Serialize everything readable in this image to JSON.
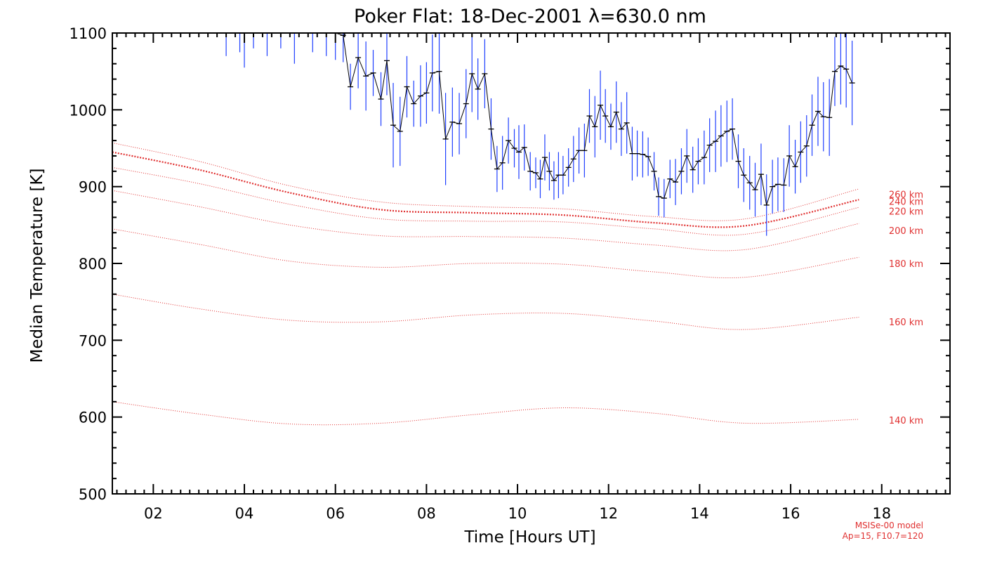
{
  "chart_data": {
    "type": "line",
    "title": "Poker Flat: 18-Dec-2001 λ=630.0 nm",
    "xlabel": "Time [Hours UT]",
    "ylabel": "Median Temperature [K]",
    "xlim": [
      1.1,
      19.5
    ],
    "ylim": [
      500,
      1100
    ],
    "x_ticks": [
      2,
      4,
      6,
      8,
      10,
      12,
      14,
      16,
      18
    ],
    "x_tick_labels": [
      "02",
      "04",
      "06",
      "08",
      "10",
      "12",
      "14",
      "16",
      "18"
    ],
    "y_ticks": [
      500,
      600,
      700,
      800,
      900,
      1000,
      1100
    ],
    "y_tick_labels": [
      "500",
      "600",
      "700",
      "800",
      "900",
      "1000",
      "1100"
    ],
    "grid": false,
    "colors": {
      "measurement": "#000000",
      "error_bar": "#1f3fff",
      "model": "#e03030"
    },
    "measurement_series": {
      "name": "",
      "points": [
        [
          3.6,
          1100,
          30
        ],
        [
          3.9,
          1100,
          25
        ],
        [
          4.0,
          1100,
          45
        ],
        [
          4.2,
          1100,
          20
        ],
        [
          4.5,
          1100,
          30
        ],
        [
          4.8,
          1100,
          20
        ],
        [
          5.1,
          1100,
          40
        ],
        [
          5.5,
          1100,
          25
        ],
        [
          5.8,
          1100,
          30
        ],
        [
          6.0,
          1100,
          35
        ],
        [
          6.17,
          1097,
          35
        ],
        [
          6.33,
          1030,
          30
        ],
        [
          6.5,
          1068,
          40
        ],
        [
          6.67,
          1044,
          45
        ],
        [
          6.83,
          1048,
          30
        ],
        [
          7.0,
          1014,
          35
        ],
        [
          7.13,
          1064,
          45
        ],
        [
          7.27,
          980,
          55
        ],
        [
          7.42,
          972,
          45
        ],
        [
          7.57,
          1030,
          40
        ],
        [
          7.72,
          1008,
          30
        ],
        [
          7.87,
          1018,
          40
        ],
        [
          8.0,
          1022,
          40
        ],
        [
          8.13,
          1048,
          50
        ],
        [
          8.28,
          1050,
          55
        ],
        [
          8.42,
          962,
          60
        ],
        [
          8.57,
          984,
          45
        ],
        [
          8.72,
          982,
          40
        ],
        [
          8.87,
          1008,
          45
        ],
        [
          9.0,
          1047,
          50
        ],
        [
          9.13,
          1027,
          40
        ],
        [
          9.28,
          1047,
          45
        ],
        [
          9.42,
          975,
          40
        ],
        [
          9.55,
          923,
          30
        ],
        [
          9.67,
          931,
          35
        ],
        [
          9.8,
          960,
          30
        ],
        [
          9.93,
          950,
          25
        ],
        [
          10.03,
          945,
          35
        ],
        [
          10.15,
          951,
          30
        ],
        [
          10.28,
          920,
          25
        ],
        [
          10.4,
          918,
          20
        ],
        [
          10.5,
          910,
          25
        ],
        [
          10.6,
          938,
          30
        ],
        [
          10.7,
          920,
          25
        ],
        [
          10.8,
          908,
          25
        ],
        [
          10.9,
          915,
          30
        ],
        [
          11.0,
          915,
          25
        ],
        [
          11.12,
          925,
          25
        ],
        [
          11.23,
          936,
          30
        ],
        [
          11.35,
          947,
          30
        ],
        [
          11.47,
          947,
          35
        ],
        [
          11.58,
          992,
          35
        ],
        [
          11.7,
          978,
          40
        ],
        [
          11.82,
          1006,
          45
        ],
        [
          11.93,
          992,
          35
        ],
        [
          12.05,
          978,
          30
        ],
        [
          12.17,
          997,
          40
        ],
        [
          12.28,
          975,
          35
        ],
        [
          12.4,
          983,
          40
        ],
        [
          12.52,
          943,
          35
        ],
        [
          12.63,
          943,
          30
        ],
        [
          12.75,
          942,
          30
        ],
        [
          12.87,
          939,
          25
        ],
        [
          13.0,
          920,
          25
        ],
        [
          13.1,
          887,
          25
        ],
        [
          13.22,
          885,
          25
        ],
        [
          13.35,
          910,
          25
        ],
        [
          13.47,
          906,
          30
        ],
        [
          13.6,
          920,
          30
        ],
        [
          13.72,
          940,
          35
        ],
        [
          13.85,
          922,
          30
        ],
        [
          13.97,
          933,
          30
        ],
        [
          14.1,
          938,
          35
        ],
        [
          14.22,
          954,
          35
        ],
        [
          14.35,
          959,
          40
        ],
        [
          14.47,
          966,
          40
        ],
        [
          14.6,
          972,
          40
        ],
        [
          14.72,
          975,
          40
        ],
        [
          14.85,
          933,
          35
        ],
        [
          14.97,
          915,
          35
        ],
        [
          15.1,
          905,
          35
        ],
        [
          15.22,
          896,
          35
        ],
        [
          15.35,
          916,
          40
        ],
        [
          15.47,
          876,
          40
        ],
        [
          15.6,
          900,
          35
        ],
        [
          15.72,
          903,
          35
        ],
        [
          15.85,
          902,
          35
        ],
        [
          15.97,
          940,
          40
        ],
        [
          16.1,
          926,
          35
        ],
        [
          16.22,
          945,
          40
        ],
        [
          16.35,
          953,
          40
        ],
        [
          16.47,
          980,
          40
        ],
        [
          16.6,
          998,
          45
        ],
        [
          16.72,
          991,
          45
        ],
        [
          16.85,
          990,
          50
        ],
        [
          16.97,
          1050,
          45
        ],
        [
          17.1,
          1057,
          50
        ],
        [
          17.22,
          1053,
          50
        ],
        [
          17.35,
          1035,
          55
        ]
      ]
    },
    "model_series": [
      {
        "name": "140 km",
        "label_y": 596,
        "x": [
          1.1,
          3.0,
          5.0,
          7.0,
          9.0,
          11.0,
          13.0,
          15.0,
          17.5
        ],
        "values": [
          620,
          604,
          591,
          592,
          603,
          612,
          605,
          592,
          597
        ]
      },
      {
        "name": "160 km",
        "label_y": 724,
        "x": [
          1.1,
          3.0,
          5.0,
          7.0,
          9.0,
          11.0,
          13.0,
          15.0,
          17.5
        ],
        "values": [
          760,
          741,
          726,
          724,
          733,
          735,
          725,
          714,
          730
        ]
      },
      {
        "name": "180 km",
        "label_y": 800,
        "x": [
          1.1,
          3.0,
          5.0,
          7.0,
          9.0,
          11.0,
          13.0,
          15.0,
          17.5
        ],
        "values": [
          845,
          825,
          803,
          795,
          800,
          799,
          789,
          782,
          808
        ]
      },
      {
        "name": "200 km",
        "label_y": 843,
        "x": [
          1.1,
          3.0,
          5.0,
          7.0,
          9.0,
          11.0,
          13.0,
          15.0,
          17.5
        ],
        "values": [
          895,
          874,
          850,
          836,
          835,
          833,
          824,
          818,
          852
        ]
      },
      {
        "name": "220 km",
        "label_y": 868,
        "x": [
          1.1,
          3.0,
          5.0,
          7.0,
          9.0,
          11.0,
          13.0,
          15.0,
          17.5
        ],
        "values": [
          925,
          904,
          877,
          858,
          855,
          854,
          845,
          838,
          873
        ]
      },
      {
        "name": "240 km",
        "label_y": 881,
        "emphasis": true,
        "x": [
          1.1,
          3.0,
          5.0,
          7.0,
          9.0,
          11.0,
          13.0,
          15.0,
          17.5
        ],
        "values": [
          945,
          922,
          892,
          870,
          866,
          863,
          853,
          849,
          883
        ]
      },
      {
        "name": "260 km",
        "label_y": 890,
        "x": [
          1.1,
          3.0,
          5.0,
          7.0,
          9.0,
          11.0,
          13.0,
          15.0,
          17.5
        ],
        "values": [
          957,
          933,
          901,
          880,
          874,
          871,
          861,
          858,
          897
        ]
      }
    ],
    "model_note": [
      "MSISe-00 model",
      "Ap=15, F10.7=120"
    ]
  }
}
